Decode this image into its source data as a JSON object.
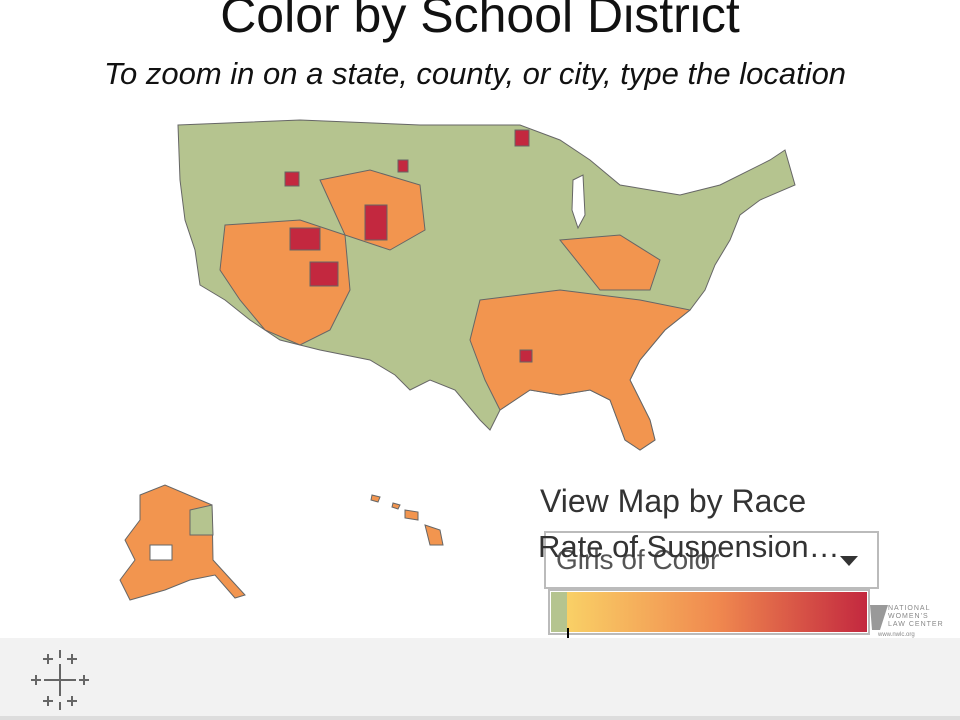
{
  "header": {
    "title": "Color by School District",
    "subtitle": "To zoom in on a state, county, or city, type the location"
  },
  "filter": {
    "label": "View Map by Race",
    "sublabel": "Rate of Suspension…",
    "selected": "Girls of Color"
  },
  "logo": {
    "lines": [
      "NATIONAL",
      "WOMEN'S",
      "LAW CENTER"
    ],
    "url": "www.nwlc.org"
  }
}
